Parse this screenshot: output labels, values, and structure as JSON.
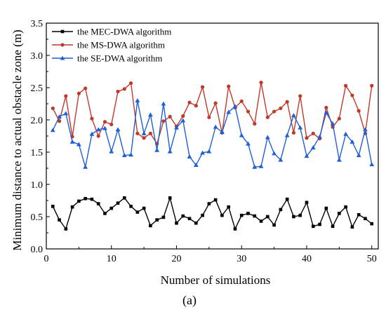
{
  "chart_data": {
    "type": "line",
    "subfigure_label": "(a)",
    "xlabel": "Number of simulations",
    "ylabel": "Minimum distance to actual obstacle zone (m)",
    "xlim": [
      0,
      51
    ],
    "ylim": [
      0.0,
      3.5
    ],
    "xticks": [
      0,
      10,
      20,
      30,
      40,
      50
    ],
    "yticks": [
      0.0,
      0.5,
      1.0,
      1.5,
      2.0,
      2.5,
      3.0,
      3.5
    ],
    "xtick_labels": [
      "0",
      "10",
      "20",
      "30",
      "40",
      "50"
    ],
    "ytick_labels": [
      "0.0",
      "0.5",
      "1.0",
      "1.5",
      "2.0",
      "2.5",
      "3.0",
      "3.5"
    ],
    "grid": false,
    "legend_position": "top-left",
    "x": [
      1,
      2,
      3,
      4,
      5,
      6,
      7,
      8,
      9,
      10,
      11,
      12,
      13,
      14,
      15,
      16,
      17,
      18,
      19,
      20,
      21,
      22,
      23,
      24,
      25,
      26,
      27,
      28,
      29,
      30,
      31,
      32,
      33,
      34,
      35,
      36,
      37,
      38,
      39,
      40,
      41,
      42,
      43,
      44,
      45,
      46,
      47,
      48,
      49,
      50
    ],
    "series": [
      {
        "name": "the MEC-DWA algorithm",
        "color": "#000000",
        "marker": "square",
        "values": [
          0.66,
          0.45,
          0.31,
          0.65,
          0.74,
          0.78,
          0.77,
          0.7,
          0.55,
          0.63,
          0.71,
          0.79,
          0.66,
          0.57,
          0.63,
          0.36,
          0.45,
          0.49,
          0.79,
          0.4,
          0.51,
          0.47,
          0.4,
          0.52,
          0.7,
          0.76,
          0.52,
          0.65,
          0.31,
          0.52,
          0.55,
          0.51,
          0.43,
          0.5,
          0.37,
          0.61,
          0.77,
          0.5,
          0.52,
          0.72,
          0.35,
          0.38,
          0.63,
          0.35,
          0.55,
          0.65,
          0.34,
          0.53,
          0.47,
          0.39
        ]
      },
      {
        "name": "the MS-DWA algorithm",
        "color": "#c0392b",
        "marker": "circle",
        "values": [
          2.18,
          1.98,
          2.37,
          1.74,
          2.41,
          2.49,
          2.02,
          1.75,
          1.97,
          1.93,
          2.44,
          2.48,
          2.57,
          1.79,
          1.72,
          1.79,
          1.63,
          1.98,
          2.05,
          1.9,
          2.06,
          2.27,
          2.22,
          2.51,
          2.04,
          2.26,
          1.8,
          2.52,
          2.19,
          2.29,
          2.13,
          1.94,
          2.58,
          2.04,
          2.13,
          2.18,
          2.28,
          1.8,
          2.37,
          1.72,
          1.79,
          1.71,
          2.19,
          1.89,
          2.02,
          2.53,
          2.38,
          2.14,
          1.79,
          2.53
        ]
      },
      {
        "name": "the SE-DWA algorithm",
        "color": "#1f5fd6",
        "marker": "triangle",
        "values": [
          1.84,
          2.05,
          2.1,
          1.66,
          1.62,
          1.27,
          1.78,
          1.85,
          1.87,
          1.51,
          1.85,
          1.45,
          1.46,
          2.3,
          1.79,
          2.08,
          1.53,
          2.25,
          1.51,
          1.88,
          1.99,
          1.43,
          1.3,
          1.49,
          1.51,
          1.89,
          1.81,
          2.12,
          2.21,
          1.76,
          1.63,
          1.27,
          1.28,
          1.73,
          1.48,
          1.38,
          1.76,
          2.07,
          1.88,
          1.44,
          1.57,
          1.74,
          2.11,
          1.94,
          1.38,
          1.78,
          1.66,
          1.45,
          1.85,
          1.31
        ]
      }
    ]
  }
}
